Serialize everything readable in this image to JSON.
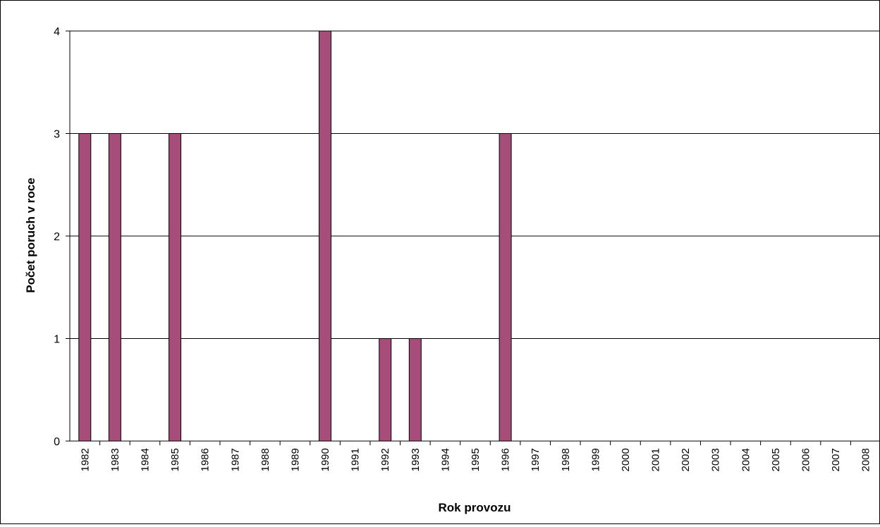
{
  "chart_data": {
    "type": "bar",
    "title": "",
    "xlabel": "Rok provozu",
    "ylabel": "Počet poruch v roce",
    "categories": [
      "1982",
      "1983",
      "1984",
      "1985",
      "1986",
      "1987",
      "1988",
      "1989",
      "1990",
      "1991",
      "1992",
      "1993",
      "1994",
      "1995",
      "1996",
      "1997",
      "1998",
      "1999",
      "2000",
      "2001",
      "2002",
      "2003",
      "2004",
      "2005",
      "2006",
      "2007",
      "2008"
    ],
    "values": [
      3,
      3,
      0,
      3,
      0,
      0,
      0,
      0,
      4,
      0,
      1,
      1,
      0,
      0,
      3,
      0,
      0,
      0,
      0,
      0,
      0,
      0,
      0,
      0,
      0,
      0,
      0
    ],
    "ylim": [
      0,
      4
    ],
    "yticks": [
      "0",
      "1",
      "2",
      "3",
      "4"
    ],
    "grid": true,
    "legend": "none",
    "colors": {
      "bar": "#A64D79",
      "bar_stroke": "#000000",
      "grid": "#000000",
      "axis": "#000000"
    }
  }
}
